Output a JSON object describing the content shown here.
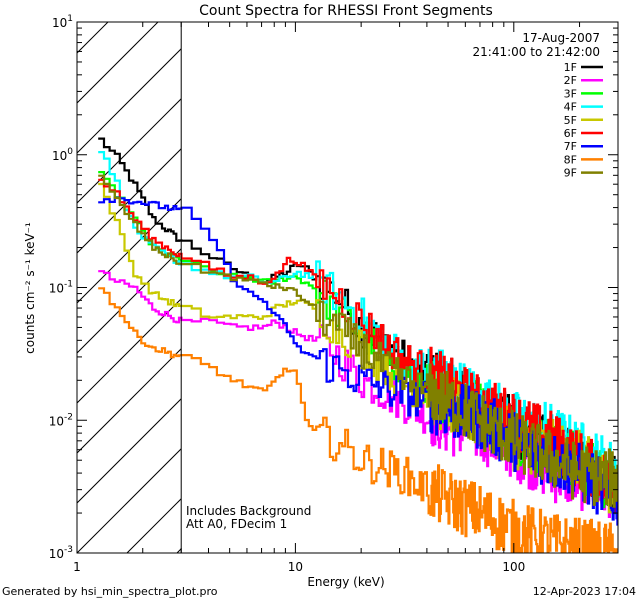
{
  "chart_data": {
    "type": "line",
    "title": "Count Spectra for RHESSI Front Segments",
    "xlabel": "Energy (keV)",
    "ylabel": "counts cm⁻² s⁻¹ keV⁻¹",
    "xscale": "log",
    "yscale": "log",
    "xlim": [
      1,
      300
    ],
    "ylim": [
      0.001,
      10
    ],
    "x_tick_labels": [
      "1",
      "10",
      "100"
    ],
    "y_tick_labels": [
      {
        "base": "10",
        "exp": "1"
      },
      {
        "base": "10",
        "exp": "0"
      },
      {
        "base": "10",
        "exp": "-1"
      },
      {
        "base": "10",
        "exp": "-2"
      },
      {
        "base": "10",
        "exp": "-3"
      }
    ],
    "y_tick_values": [
      10,
      1,
      0.1,
      0.01,
      0.001
    ],
    "x_tick_values": [
      1,
      10,
      100
    ],
    "hatched_region_xmax": 3,
    "date_label": "17-Aug-2007",
    "time_range_label": "21:41:00 to 21:42:00",
    "annotation_lines": [
      "Includes Background",
      "Att A0, FDecim 1"
    ],
    "legend_position": "top-right",
    "series": [
      {
        "name": "1F",
        "color": "#000000",
        "x": [
          1.25,
          1.5,
          1.8,
          2.2,
          3,
          4,
          5,
          6,
          7,
          8,
          9,
          10,
          11,
          12,
          15,
          20,
          25,
          30,
          40,
          50,
          70,
          100,
          150,
          200,
          300
        ],
        "values": [
          1.3,
          0.95,
          0.6,
          0.33,
          0.22,
          0.17,
          0.14,
          0.12,
          0.11,
          0.12,
          0.13,
          0.15,
          0.14,
          0.12,
          0.09,
          0.05,
          0.04,
          0.03,
          0.022,
          0.018,
          0.012,
          0.009,
          0.006,
          0.005,
          0.003
        ]
      },
      {
        "name": "2F",
        "color": "#ff00ff",
        "x": [
          1.25,
          1.5,
          1.8,
          2.2,
          3,
          4,
          5,
          6,
          7,
          8,
          9,
          10,
          12,
          15,
          20,
          30,
          50,
          70,
          100,
          150,
          200,
          300
        ],
        "values": [
          0.13,
          0.11,
          0.1,
          0.07,
          0.055,
          0.055,
          0.05,
          0.05,
          0.05,
          0.055,
          0.05,
          0.045,
          0.04,
          0.032,
          0.02,
          0.014,
          0.009,
          0.008,
          0.006,
          0.004,
          0.0035,
          0.003
        ]
      },
      {
        "name": "3F",
        "color": "#00ff00",
        "x": [
          1.25,
          1.5,
          1.8,
          2.2,
          3,
          4,
          5,
          6,
          7,
          8,
          9,
          10,
          12,
          15,
          20,
          30,
          50,
          70,
          100,
          150,
          200,
          300
        ],
        "values": [
          0.7,
          0.5,
          0.33,
          0.2,
          0.16,
          0.13,
          0.12,
          0.12,
          0.11,
          0.11,
          0.12,
          0.12,
          0.1,
          0.07,
          0.045,
          0.025,
          0.015,
          0.012,
          0.008,
          0.006,
          0.005,
          0.003
        ]
      },
      {
        "name": "4F",
        "color": "#00ffff",
        "x": [
          1.25,
          1.5,
          1.8,
          2.2,
          3,
          4,
          5,
          6,
          7,
          8,
          9,
          10,
          12,
          15,
          20,
          30,
          50,
          70,
          100,
          150,
          200,
          300
        ],
        "values": [
          1.1,
          0.6,
          0.28,
          0.2,
          0.15,
          0.13,
          0.12,
          0.12,
          0.11,
          0.11,
          0.12,
          0.13,
          0.12,
          0.09,
          0.06,
          0.03,
          0.02,
          0.014,
          0.01,
          0.008,
          0.006,
          0.004
        ]
      },
      {
        "name": "5F",
        "color": "#c8c800",
        "x": [
          1.25,
          1.5,
          1.8,
          2.2,
          3,
          4,
          5,
          6,
          7,
          8,
          9,
          10,
          12,
          15,
          20,
          30,
          50,
          70,
          100,
          150,
          200,
          300
        ],
        "values": [
          0.6,
          0.3,
          0.13,
          0.09,
          0.07,
          0.06,
          0.06,
          0.06,
          0.06,
          0.07,
          0.075,
          0.08,
          0.07,
          0.05,
          0.035,
          0.02,
          0.013,
          0.01,
          0.007,
          0.006,
          0.005,
          0.003
        ]
      },
      {
        "name": "6F",
        "color": "#ff0000",
        "x": [
          1.25,
          1.5,
          1.8,
          2.2,
          3,
          4,
          5,
          6,
          7,
          8,
          9,
          10,
          12,
          15,
          20,
          30,
          50,
          70,
          100,
          150,
          200,
          300
        ],
        "values": [
          0.65,
          0.5,
          0.33,
          0.23,
          0.17,
          0.14,
          0.12,
          0.12,
          0.11,
          0.12,
          0.16,
          0.16,
          0.12,
          0.09,
          0.055,
          0.03,
          0.018,
          0.013,
          0.01,
          0.007,
          0.005,
          0.003
        ]
      },
      {
        "name": "7F",
        "color": "#0000ff",
        "x": [
          1.25,
          1.5,
          1.8,
          2.2,
          3,
          4,
          5,
          6,
          7,
          8,
          9,
          10,
          12,
          15,
          20,
          30,
          50,
          70,
          100,
          150,
          200,
          300
        ],
        "values": [
          0.46,
          0.47,
          0.45,
          0.42,
          0.38,
          0.24,
          0.12,
          0.09,
          0.08,
          0.06,
          0.05,
          0.035,
          0.03,
          0.025,
          0.02,
          0.016,
          0.012,
          0.01,
          0.007,
          0.005,
          0.004,
          0.0025
        ]
      },
      {
        "name": "8F",
        "color": "#ff8000",
        "x": [
          1.25,
          1.5,
          1.8,
          2.2,
          3,
          4,
          5,
          6,
          7,
          8,
          9,
          10,
          11,
          12,
          15,
          20,
          30,
          40,
          50,
          70,
          100,
          150,
          200,
          300
        ],
        "values": [
          0.1,
          0.07,
          0.045,
          0.035,
          0.03,
          0.025,
          0.02,
          0.018,
          0.016,
          0.02,
          0.025,
          0.022,
          0.01,
          0.008,
          0.007,
          0.005,
          0.004,
          0.003,
          0.0025,
          0.002,
          0.0015,
          0.0012,
          0.0011,
          0.001
        ]
      },
      {
        "name": "9F",
        "color": "#808000",
        "x": [
          1.25,
          1.5,
          1.8,
          2.2,
          3,
          4,
          5,
          6,
          7,
          8,
          9,
          10,
          12,
          15,
          20,
          30,
          50,
          70,
          100,
          150,
          200,
          300
        ],
        "values": [
          0.67,
          0.45,
          0.3,
          0.2,
          0.15,
          0.13,
          0.12,
          0.11,
          0.11,
          0.1,
          0.1,
          0.09,
          0.07,
          0.05,
          0.035,
          0.02,
          0.014,
          0.01,
          0.007,
          0.005,
          0.004,
          0.0035
        ]
      }
    ]
  },
  "footer": {
    "left": "Generated by hsi_min_spectra_plot.pro",
    "right": "12-Apr-2023 17:04"
  }
}
